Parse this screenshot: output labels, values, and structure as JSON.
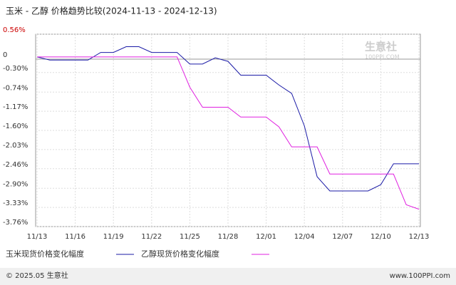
{
  "chart_data": {
    "type": "line",
    "title": "玉米 - 乙醇 价格趋势比较(2024-11-13 - 2024-12-13)",
    "watermark": "生意社",
    "watermark_sub": "100PPI.COM",
    "footer_left": "© 2025.05 生意社",
    "footer_right": "www.100PPI.com",
    "categories": [
      "11/13",
      null,
      null,
      "11/16",
      null,
      null,
      "11/19",
      null,
      null,
      "11/22",
      null,
      null,
      "11/25",
      null,
      null,
      "11/28",
      null,
      null,
      "12/01",
      null,
      null,
      "12/04",
      null,
      null,
      "12/07",
      null,
      null,
      "12/10",
      null,
      null,
      "12/13"
    ],
    "series": [
      {
        "name": "玉米现货价格变化幅度",
        "color": "#1a1aa6",
        "values": [
          0.05,
          -0.02,
          -0.02,
          -0.02,
          -0.02,
          0.15,
          0.15,
          0.28,
          0.28,
          0.15,
          0.15,
          0.15,
          -0.11,
          -0.11,
          0.03,
          -0.05,
          -0.36,
          -0.36,
          -0.36,
          -0.58,
          -0.77,
          -1.5,
          -2.64,
          -2.96,
          -2.96,
          -2.96,
          -2.96,
          -2.82,
          -2.35,
          -2.35,
          -2.35
        ]
      },
      {
        "name": "乙醇现货价格变化幅度",
        "color": "#e020e0",
        "values": [
          0.05,
          0.05,
          0.05,
          0.05,
          0.05,
          0.05,
          0.05,
          0.05,
          0.05,
          0.05,
          0.05,
          0.05,
          -0.63,
          -1.08,
          -1.08,
          -1.08,
          -1.3,
          -1.3,
          -1.3,
          -1.52,
          -1.97,
          -1.97,
          -1.97,
          -2.58,
          -2.58,
          -2.58,
          -2.58,
          -2.58,
          -2.58,
          -3.27,
          -3.37
        ]
      }
    ],
    "ylim": [
      -3.76,
      0.56
    ],
    "yticks": [
      {
        "value": 0.56,
        "label": "0.56%"
      },
      0,
      {
        "value": -0.3,
        "label": "-0.30%"
      },
      {
        "value": -0.74,
        "label": "-0.74%"
      },
      {
        "value": -1.17,
        "label": "-1.17%"
      },
      {
        "value": -1.6,
        "label": "-1.60%"
      },
      {
        "value": -2.03,
        "label": "-2.03%"
      },
      {
        "value": -2.46,
        "label": "-2.46%"
      },
      {
        "value": -2.9,
        "label": "-2.90%"
      },
      {
        "value": -3.33,
        "label": "-3.33%"
      },
      {
        "value": -3.76,
        "label": "-3.76%"
      }
    ],
    "grid": true
  }
}
